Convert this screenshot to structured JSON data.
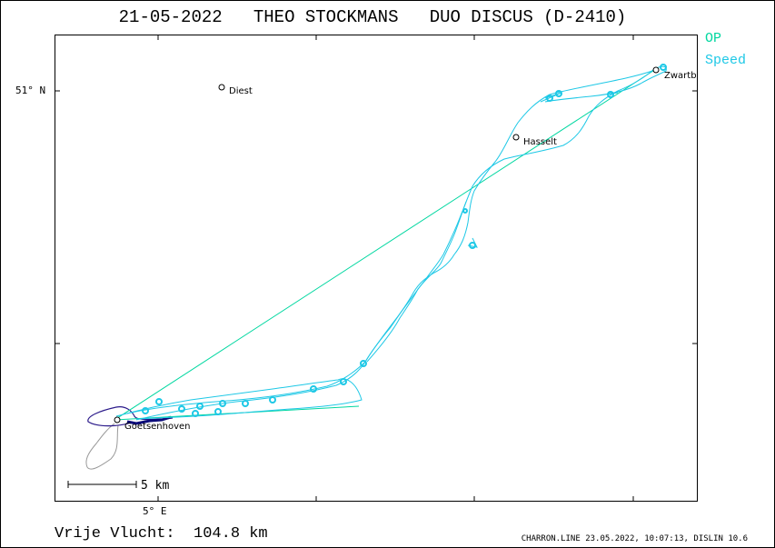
{
  "title": "21-05-2022   THEO STOCKMANS   DUO DISCUS (D-2410)",
  "legend": {
    "items": [
      {
        "label": "OP",
        "color": "#00d7a0"
      },
      {
        "label": "Speed",
        "color": "#1ec8e6"
      }
    ]
  },
  "axes": {
    "lat_label": "51° N",
    "lon_label": "5° E"
  },
  "places": [
    {
      "name": "Diest"
    },
    {
      "name": "Hasselt"
    },
    {
      "name": "Zwartb"
    },
    {
      "name": "Goetsenhoven"
    }
  ],
  "scale": {
    "label": "5  km"
  },
  "distance": {
    "label": "Vrije Vlucht:  104.8 km"
  },
  "credits": "CHARRON.LINE 23.05.2022, 10:07:13, DISLIN 10.6",
  "colors": {
    "track": "#1ec8e6",
    "task": "#00d7a0",
    "tow": "#2b1a8a",
    "engine": "#999999"
  }
}
